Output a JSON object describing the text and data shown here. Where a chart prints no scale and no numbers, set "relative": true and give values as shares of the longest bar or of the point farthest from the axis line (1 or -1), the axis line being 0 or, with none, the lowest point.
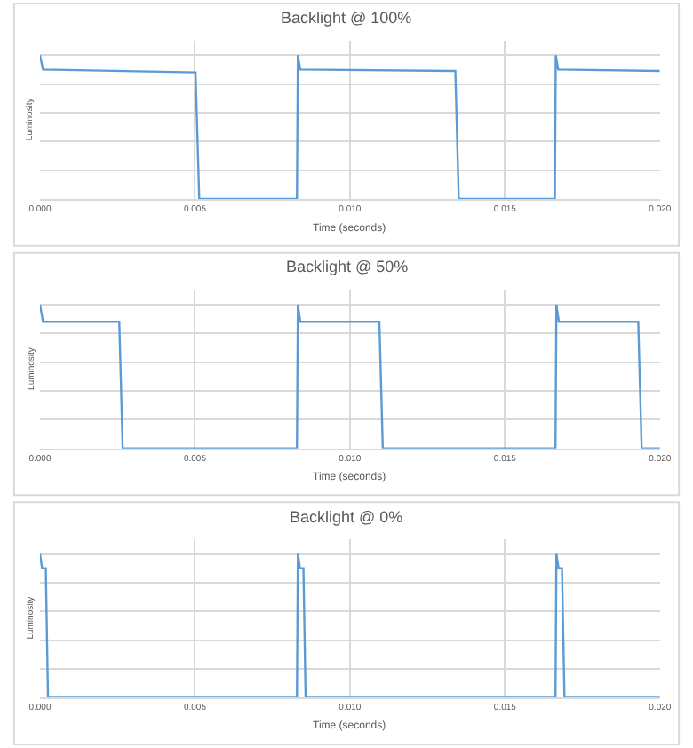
{
  "chart_data": [
    {
      "type": "line",
      "title": "Backlight @ 100%",
      "xlabel": "Time (seconds)",
      "ylabel": "Luminosity",
      "relative": true,
      "grid": true,
      "line_style": "solid",
      "marker": "none",
      "x": [
        0,
        0.0001,
        0.00502,
        0.00514,
        0.00829,
        0.00832,
        0.0084,
        0.0134,
        0.01351,
        0.01661,
        0.01664,
        0.01672,
        0.02
      ],
      "series": [
        {
          "color": "#5b9bd5",
          "values": [
            1.0,
            0.9,
            0.88,
            0,
            0,
            1.0,
            0.9,
            0.89,
            0,
            0,
            1.0,
            0.9,
            0.89
          ]
        }
      ],
      "xlim": [
        0,
        0.02
      ],
      "xticks": [
        {
          "value": 0,
          "label": "0.000"
        },
        {
          "value": 0.005,
          "label": "0.005"
        },
        {
          "value": 0.01,
          "label": "0.010"
        },
        {
          "value": 0.015,
          "label": "0.015"
        },
        {
          "value": 0.02,
          "label": "0.020"
        }
      ]
    },
    {
      "type": "line",
      "title": "Backlight @ 50%",
      "xlabel": "Time (seconds)",
      "ylabel": "Luminosity",
      "relative": true,
      "grid": true,
      "line_style": "solid",
      "marker": "none",
      "x": [
        0,
        0.0001,
        0.00256,
        0.00267,
        0.00829,
        0.00832,
        0.0084,
        0.01095,
        0.01106,
        0.01663,
        0.01666,
        0.01674,
        0.0193,
        0.01941,
        0.02
      ],
      "series": [
        {
          "color": "#5b9bd5",
          "values": [
            1.0,
            0.88,
            0.88,
            0,
            0,
            1.0,
            0.88,
            0.88,
            0,
            0,
            1.0,
            0.88,
            0.88,
            0,
            0
          ]
        }
      ],
      "xlim": [
        0,
        0.02
      ],
      "xticks": [
        {
          "value": 0,
          "label": "0.000"
        },
        {
          "value": 0.005,
          "label": "0.005"
        },
        {
          "value": 0.01,
          "label": "0.010"
        },
        {
          "value": 0.015,
          "label": "0.015"
        },
        {
          "value": 0.02,
          "label": "0.020"
        }
      ]
    },
    {
      "type": "line",
      "title": "Backlight @ 0%",
      "xlabel": "Time (seconds)",
      "ylabel": "Luminosity",
      "relative": true,
      "grid": true,
      "line_style": "solid",
      "marker": "none",
      "x": [
        0,
        7e-05,
        0.00019,
        0.00026,
        0.00829,
        0.00832,
        0.00839,
        0.0085,
        0.00857,
        0.01663,
        0.01666,
        0.01673,
        0.01684,
        0.01692,
        0.02
      ],
      "series": [
        {
          "color": "#5b9bd5",
          "values": [
            1.0,
            0.9,
            0.9,
            0,
            0,
            1.0,
            0.9,
            0.9,
            0,
            0,
            1.0,
            0.9,
            0.9,
            0,
            0
          ]
        }
      ],
      "xlim": [
        0,
        0.02
      ],
      "xticks": [
        {
          "value": 0,
          "label": "0.000"
        },
        {
          "value": 0.005,
          "label": "0.005"
        },
        {
          "value": 0.01,
          "label": "0.010"
        },
        {
          "value": 0.015,
          "label": "0.015"
        },
        {
          "value": 0.02,
          "label": "0.020"
        }
      ]
    }
  ]
}
